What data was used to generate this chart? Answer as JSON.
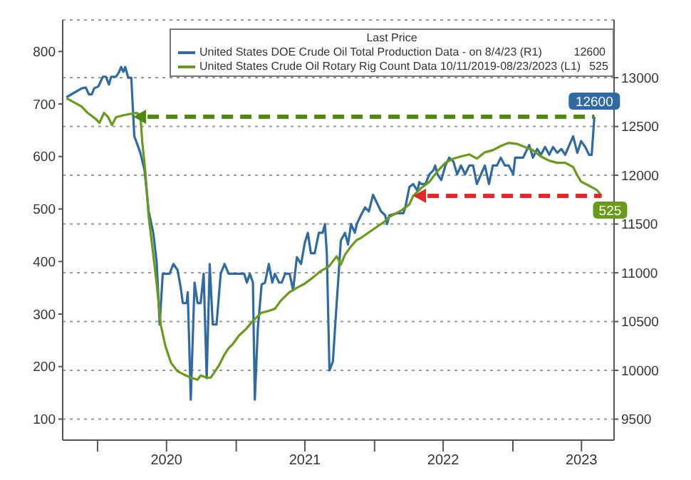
{
  "chart_data": {
    "type": "line",
    "legend_title": "Last Price",
    "annotations": [
      "12600",
      "525"
    ],
    "legend": "top right",
    "grid": true,
    "xlim": [
      "2019-10-01",
      "2023-09-25"
    ],
    "xticks": [
      {
        "value": "2020-01-01",
        "label": null
      },
      {
        "value": "2020-07-01",
        "label": "2020"
      },
      {
        "value": "2021-01-01",
        "label": null
      },
      {
        "value": "2021-07-01",
        "label": "2021"
      },
      {
        "value": "2022-01-01",
        "label": null
      },
      {
        "value": "2022-07-01",
        "label": "2022"
      },
      {
        "value": "2023-01-01",
        "label": null
      },
      {
        "value": "2023-07-01",
        "label": "2023"
      }
    ],
    "ylim": [
      60,
      860
    ],
    "yticks": [
      100,
      200,
      300,
      400,
      500,
      600,
      700,
      800
    ],
    "y2lim": [
      9285,
      13592
    ],
    "y2ticks": [
      9500,
      10000,
      10500,
      11000,
      11500,
      12000,
      12500,
      13000
    ],
    "series": [
      {
        "name": "United States DOE Crude Oil Total Production Data -  on 8/4/23  (R1)",
        "color": "#2f6aa3",
        "axis": "y2",
        "x": [
          "2019-10-11",
          "2019-11-20",
          "2019-12-01",
          "2019-12-09",
          "2019-12-17",
          "2019-12-23",
          "2020-01-03",
          "2020-01-08",
          "2020-01-15",
          "2020-01-23",
          "2020-01-31",
          "2020-02-06",
          "2020-02-19",
          "2020-02-27",
          "2020-03-03",
          "2020-03-09",
          "2020-03-14",
          "2020-03-22",
          "2020-03-30",
          "2020-04-07",
          "2020-04-23",
          "2020-05-04",
          "2020-05-15",
          "2020-05-27",
          "2020-06-05",
          "2020-06-13",
          "2020-06-21",
          "2020-06-28",
          "2020-07-09",
          "2020-07-19",
          "2020-07-30",
          "2020-08-07",
          "2020-08-13",
          "2020-08-23",
          "2020-08-26",
          "2020-09-03",
          "2020-09-13",
          "2020-09-21",
          "2020-09-29",
          "2020-10-07",
          "2020-10-15",
          "2020-10-23",
          "2020-10-31",
          "2020-11-10",
          "2020-11-21",
          "2020-12-01",
          "2020-12-12",
          "2021-01-08",
          "2021-01-22",
          "2021-01-29",
          "2021-02-06",
          "2021-02-14",
          "2021-02-19",
          "2021-02-27",
          "2021-03-09",
          "2021-03-18",
          "2021-03-28",
          "2021-04-06",
          "2021-04-13",
          "2021-04-24",
          "2021-05-01",
          "2021-05-10",
          "2021-05-22",
          "2021-05-31",
          "2021-06-10",
          "2021-06-21",
          "2021-07-01",
          "2021-07-09",
          "2021-07-17",
          "2021-07-27",
          "2021-08-07",
          "2021-08-17",
          "2021-08-23",
          "2021-08-28",
          "2021-09-04",
          "2021-09-13",
          "2021-09-23",
          "2021-09-29",
          "2021-10-04",
          "2021-10-15",
          "2021-10-23",
          "2021-10-31",
          "2021-11-10",
          "2021-11-15",
          "2021-11-26",
          "2021-12-07",
          "2021-12-17",
          "2021-12-28",
          "2022-01-08",
          "2022-01-18",
          "2022-01-29",
          "2022-02-03",
          "2022-02-09",
          "2022-03-02",
          "2022-03-18",
          "2022-03-23",
          "2022-04-03",
          "2022-04-13",
          "2022-04-24",
          "2022-04-29",
          "2022-05-04",
          "2022-05-15",
          "2022-05-26",
          "2022-06-05",
          "2022-06-10",
          "2022-06-16",
          "2022-06-26",
          "2022-07-07",
          "2022-07-17",
          "2022-07-28",
          "2022-08-07",
          "2022-08-17",
          "2022-08-28",
          "2022-09-08",
          "2022-09-18",
          "2022-09-28",
          "2022-10-09",
          "2022-10-19",
          "2022-10-30",
          "2022-11-09",
          "2022-11-20",
          "2022-11-30",
          "2022-12-11",
          "2022-12-21",
          "2023-01-02",
          "2023-01-07",
          "2023-01-28",
          "2023-02-13",
          "2023-02-23",
          "2023-03-06",
          "2023-03-16",
          "2023-03-27",
          "2023-04-07",
          "2023-04-17",
          "2023-04-28",
          "2023-05-09",
          "2023-05-19",
          "2023-05-30",
          "2023-06-09",
          "2023-06-20",
          "2023-06-30",
          "2023-07-11",
          "2023-07-21",
          "2023-07-28",
          "2023-08-04"
        ],
        "values": [
          12800,
          12890,
          12900,
          12830,
          12830,
          12890,
          12910,
          12950,
          13010,
          13010,
          12930,
          13010,
          13010,
          13060,
          13110,
          13060,
          13110,
          13000,
          13000,
          12400,
          12230,
          12050,
          11630,
          11410,
          11110,
          10470,
          10990,
          10990,
          10990,
          11090,
          11030,
          10860,
          10690,
          10690,
          10800,
          9700,
          10900,
          10690,
          10690,
          10990,
          9920,
          11090,
          10470,
          10470,
          10990,
          11090,
          10990,
          10990,
          10990,
          10900,
          10990,
          10900,
          9700,
          10430,
          10880,
          10900,
          11090,
          10900,
          10990,
          10900,
          10900,
          10990,
          10990,
          10820,
          11160,
          11090,
          11310,
          11410,
          11200,
          11200,
          11410,
          11410,
          11500,
          11200,
          10000,
          10090,
          10690,
          11030,
          11330,
          11410,
          11290,
          11500,
          11410,
          11500,
          11590,
          11670,
          11630,
          11800,
          11710,
          11630,
          11590,
          11500,
          11590,
          11610,
          11610,
          11670,
          11880,
          11910,
          11840,
          11930,
          11910,
          11910,
          12010,
          12050,
          12100,
          12010,
          11950,
          12100,
          12180,
          12140,
          12010,
          12100,
          12010,
          12100,
          12100,
          11910,
          12010,
          12100,
          11910,
          12100,
          12100,
          12180,
          12100,
          12100,
          12010,
          12180,
          12180,
          12310,
          12180,
          12270,
          12210,
          12290,
          12210,
          12290,
          12230,
          12270,
          12210,
          12310,
          12400,
          12230,
          12350,
          12290,
          12210,
          12210,
          12600
        ],
        "value_labels": [
          null,
          null,
          null,
          null,
          null,
          null,
          null,
          null,
          null,
          null,
          null,
          null,
          null,
          null,
          null,
          null,
          null,
          null,
          null,
          null,
          null,
          null,
          null,
          null,
          null,
          null,
          null,
          null,
          null,
          null,
          null,
          null,
          null,
          null,
          null,
          null,
          null,
          null,
          null,
          null,
          null,
          null,
          null,
          null,
          null,
          null,
          null,
          null,
          null,
          null,
          null,
          null,
          null,
          null,
          null,
          null,
          null,
          null,
          null,
          null,
          null,
          null,
          null,
          null,
          null,
          null,
          null,
          null,
          null,
          null,
          null,
          null,
          null,
          null,
          null,
          null,
          null,
          null,
          null,
          null,
          null,
          null,
          null,
          null,
          null,
          null,
          null,
          null,
          null,
          null,
          null,
          null,
          null,
          null,
          null,
          null,
          null,
          null,
          null,
          null,
          null,
          null,
          null,
          null,
          null,
          null,
          null,
          null,
          null,
          null,
          null,
          null,
          null,
          null,
          null,
          null,
          null,
          null,
          null,
          null,
          null,
          null,
          null,
          null,
          null,
          null,
          null,
          null,
          null,
          null,
          null,
          null,
          null,
          null,
          null,
          null,
          null,
          null,
          null,
          null,
          null,
          null,
          null,
          null,
          "12600"
        ]
      },
      {
        "name": "United States Crude Oil Rotary Rig Count Data 10/11/2019-08/23/2023  (L1)",
        "color": "#6a9a1a",
        "x": [
          "2019-10-11",
          "2019-11-20",
          "2019-12-06",
          "2019-12-28",
          "2020-01-06",
          "2020-01-18",
          "2020-01-29",
          "2020-02-08",
          "2020-02-19",
          "2020-03-12",
          "2020-04-12",
          "2020-04-23",
          "2020-04-28",
          "2020-05-06",
          "2020-05-15",
          "2020-05-27",
          "2020-06-05",
          "2020-06-16",
          "2020-06-28",
          "2020-07-13",
          "2020-07-30",
          "2020-08-21",
          "2020-09-03",
          "2020-09-21",
          "2020-09-29",
          "2020-10-15",
          "2020-10-26",
          "2020-11-06",
          "2020-11-17",
          "2020-12-01",
          "2020-12-12",
          "2020-12-23",
          "2021-01-08",
          "2021-01-26",
          "2021-02-14",
          "2021-03-07",
          "2021-03-28",
          "2021-04-13",
          "2021-04-29",
          "2021-05-22",
          "2021-06-10",
          "2021-07-01",
          "2021-07-23",
          "2021-08-12",
          "2021-09-03",
          "2021-09-23",
          "2021-10-04",
          "2021-10-15",
          "2021-10-31",
          "2021-11-15",
          "2021-11-26",
          "2021-12-28",
          "2022-01-29",
          "2022-02-09",
          "2022-03-12",
          "2022-04-03",
          "2022-04-13",
          "2022-05-04",
          "2022-05-26",
          "2022-06-16",
          "2022-07-07",
          "2022-07-28",
          "2022-08-17",
          "2022-09-08",
          "2022-09-28",
          "2022-10-19",
          "2022-11-09",
          "2022-11-30",
          "2022-12-21",
          "2023-01-12",
          "2023-02-02",
          "2023-02-23",
          "2023-03-16",
          "2023-04-07",
          "2023-04-28",
          "2023-05-19",
          "2023-06-09",
          "2023-06-20",
          "2023-06-30",
          "2023-07-22",
          "2023-08-11",
          "2023-08-23"
        ],
        "values": [
          711,
          695,
          683,
          671,
          664,
          683,
          675,
          660,
          675,
          679,
          683,
          679,
          628,
          572,
          485,
          413,
          358,
          279,
          239,
          207,
          191,
          183,
          179,
          175,
          183,
          179,
          179,
          191,
          203,
          223,
          235,
          243,
          259,
          271,
          287,
          302,
          306,
          310,
          326,
          342,
          350,
          358,
          370,
          382,
          391,
          410,
          394,
          413,
          429,
          441,
          445,
          461,
          477,
          485,
          497,
          509,
          525,
          540,
          552,
          572,
          588,
          596,
          600,
          604,
          596,
          608,
          612,
          620,
          626,
          624,
          618,
          612,
          600,
          592,
          588,
          588,
          580,
          564,
          552,
          544,
          536,
          525
        ],
        "value_labels": [
          null,
          null,
          null,
          null,
          null,
          null,
          null,
          null,
          null,
          null,
          null,
          null,
          null,
          null,
          null,
          null,
          null,
          null,
          null,
          null,
          null,
          null,
          null,
          null,
          null,
          null,
          null,
          null,
          null,
          null,
          null,
          null,
          null,
          null,
          null,
          null,
          null,
          null,
          null,
          null,
          null,
          null,
          null,
          null,
          null,
          null,
          null,
          null,
          null,
          null,
          null,
          null,
          null,
          null,
          null,
          null,
          null,
          null,
          null,
          null,
          null,
          null,
          null,
          null,
          null,
          null,
          null,
          null,
          null,
          null,
          null,
          null,
          null,
          null,
          null,
          null,
          null,
          null,
          null,
          null,
          null,
          "525"
        ]
      }
    ]
  }
}
